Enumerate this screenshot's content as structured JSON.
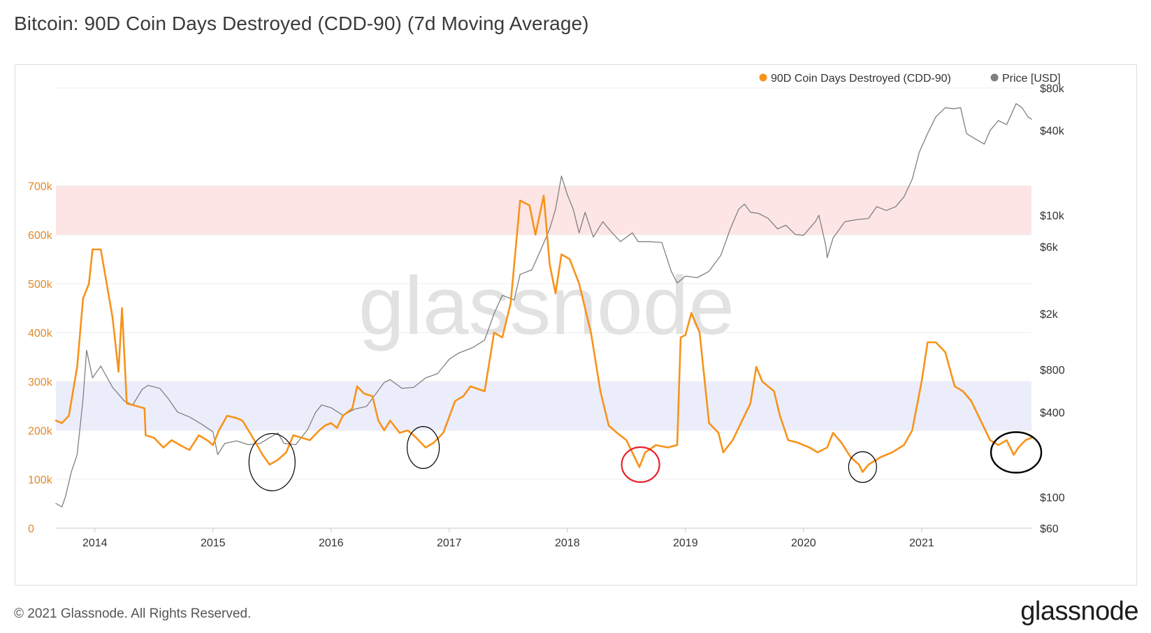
{
  "title": "Bitcoin: 90D Coin Days Destroyed (CDD-90) (7d Moving Average)",
  "footer": {
    "copyright": "© 2021 Glassnode. All Rights Reserved.",
    "logo": "glassnode"
  },
  "watermark": "glassnode",
  "colors": {
    "cdd": "#f7931a",
    "price": "#808080",
    "upper_band": "#fde5e5",
    "lower_band": "#ecedfb",
    "left_axis": "#e08a2a",
    "right_axis": "#333333",
    "circle_black": "#000000",
    "circle_red": "#e8202a"
  },
  "chart_data": {
    "type": "line",
    "title": "Bitcoin: 90D Coin Days Destroyed (CDD-90) (7d Moving Average)",
    "legend_position": "top-right",
    "grid": true,
    "x_range": [
      2013.67,
      2021.93
    ],
    "x_ticks": [
      "2014",
      "2015",
      "2016",
      "2017",
      "2018",
      "2019",
      "2020",
      "2021"
    ],
    "y_left": {
      "range": [
        0,
        900000
      ],
      "ticks": [
        0,
        100000,
        200000,
        300000,
        400000,
        500000,
        600000,
        700000
      ],
      "tick_labels": [
        "0",
        "100k",
        "200k",
        "300k",
        "400k",
        "500k",
        "600k",
        "700k"
      ]
    },
    "y_right": {
      "scale": "log",
      "range": [
        60,
        80000
      ],
      "ticks": [
        60,
        100,
        400,
        800,
        2000,
        6000,
        10000,
        40000,
        80000
      ],
      "tick_labels": [
        "$60",
        "$100",
        "$400",
        "$800",
        "$2k",
        "$6k",
        "$10k",
        "$40k",
        "$80k"
      ]
    },
    "bands": [
      {
        "axis": "left",
        "from": 600000,
        "to": 700000,
        "color": "#fde5e5"
      },
      {
        "axis": "left",
        "from": 200000,
        "to": 300000,
        "color": "#ecedfb"
      }
    ],
    "series": [
      {
        "name": "90D Coin Days Destroyed (CDD-90)",
        "axis": "left",
        "color": "#f7931a",
        "points": [
          [
            2013.67,
            220000
          ],
          [
            2013.72,
            215000
          ],
          [
            2013.78,
            230000
          ],
          [
            2013.85,
            330000
          ],
          [
            2013.9,
            470000
          ],
          [
            2013.95,
            500000
          ],
          [
            2013.98,
            570000
          ],
          [
            2014.05,
            570000
          ],
          [
            2014.1,
            500000
          ],
          [
            2014.15,
            430000
          ],
          [
            2014.2,
            320000
          ],
          [
            2014.23,
            450000
          ],
          [
            2014.27,
            255000
          ],
          [
            2014.35,
            250000
          ],
          [
            2014.42,
            245000
          ],
          [
            2014.43,
            190000
          ],
          [
            2014.5,
            185000
          ],
          [
            2014.58,
            165000
          ],
          [
            2014.65,
            180000
          ],
          [
            2014.72,
            170000
          ],
          [
            2014.8,
            160000
          ],
          [
            2014.88,
            190000
          ],
          [
            2014.95,
            180000
          ],
          [
            2015.0,
            170000
          ],
          [
            2015.05,
            200000
          ],
          [
            2015.12,
            230000
          ],
          [
            2015.2,
            225000
          ],
          [
            2015.25,
            220000
          ],
          [
            2015.35,
            180000
          ],
          [
            2015.42,
            150000
          ],
          [
            2015.48,
            130000
          ],
          [
            2015.55,
            140000
          ],
          [
            2015.62,
            155000
          ],
          [
            2015.68,
            190000
          ],
          [
            2015.75,
            185000
          ],
          [
            2015.82,
            180000
          ],
          [
            2015.9,
            200000
          ],
          [
            2015.95,
            210000
          ],
          [
            2016.0,
            215000
          ],
          [
            2016.05,
            205000
          ],
          [
            2016.1,
            230000
          ],
          [
            2016.18,
            245000
          ],
          [
            2016.22,
            290000
          ],
          [
            2016.28,
            275000
          ],
          [
            2016.35,
            270000
          ],
          [
            2016.4,
            220000
          ],
          [
            2016.45,
            200000
          ],
          [
            2016.5,
            220000
          ],
          [
            2016.58,
            195000
          ],
          [
            2016.65,
            200000
          ],
          [
            2016.72,
            185000
          ],
          [
            2016.8,
            165000
          ],
          [
            2016.87,
            175000
          ],
          [
            2016.95,
            195000
          ],
          [
            2017.05,
            260000
          ],
          [
            2017.12,
            270000
          ],
          [
            2017.18,
            290000
          ],
          [
            2017.3,
            280000
          ],
          [
            2017.38,
            400000
          ],
          [
            2017.45,
            390000
          ],
          [
            2017.52,
            460000
          ],
          [
            2017.6,
            670000
          ],
          [
            2017.68,
            660000
          ],
          [
            2017.73,
            600000
          ],
          [
            2017.8,
            680000
          ],
          [
            2017.85,
            540000
          ],
          [
            2017.9,
            480000
          ],
          [
            2017.95,
            560000
          ],
          [
            2018.02,
            550000
          ],
          [
            2018.1,
            500000
          ],
          [
            2018.2,
            400000
          ],
          [
            2018.28,
            280000
          ],
          [
            2018.35,
            210000
          ],
          [
            2018.42,
            195000
          ],
          [
            2018.5,
            180000
          ],
          [
            2018.56,
            150000
          ],
          [
            2018.61,
            125000
          ],
          [
            2018.66,
            155000
          ],
          [
            2018.75,
            170000
          ],
          [
            2018.85,
            165000
          ],
          [
            2018.93,
            170000
          ],
          [
            2018.96,
            390000
          ],
          [
            2019.0,
            395000
          ],
          [
            2019.05,
            440000
          ],
          [
            2019.12,
            400000
          ],
          [
            2019.2,
            215000
          ],
          [
            2019.28,
            195000
          ],
          [
            2019.32,
            155000
          ],
          [
            2019.4,
            180000
          ],
          [
            2019.5,
            230000
          ],
          [
            2019.55,
            255000
          ],
          [
            2019.6,
            330000
          ],
          [
            2019.65,
            300000
          ],
          [
            2019.75,
            280000
          ],
          [
            2019.8,
            230000
          ],
          [
            2019.87,
            180000
          ],
          [
            2019.95,
            175000
          ],
          [
            2020.05,
            165000
          ],
          [
            2020.12,
            155000
          ],
          [
            2020.2,
            165000
          ],
          [
            2020.25,
            195000
          ],
          [
            2020.32,
            175000
          ],
          [
            2020.4,
            145000
          ],
          [
            2020.47,
            130000
          ],
          [
            2020.5,
            115000
          ],
          [
            2020.55,
            130000
          ],
          [
            2020.65,
            145000
          ],
          [
            2020.75,
            155000
          ],
          [
            2020.85,
            170000
          ],
          [
            2020.92,
            200000
          ],
          [
            2021.0,
            300000
          ],
          [
            2021.05,
            380000
          ],
          [
            2021.12,
            380000
          ],
          [
            2021.2,
            360000
          ],
          [
            2021.28,
            290000
          ],
          [
            2021.35,
            280000
          ],
          [
            2021.42,
            260000
          ],
          [
            2021.5,
            220000
          ],
          [
            2021.58,
            180000
          ],
          [
            2021.65,
            170000
          ],
          [
            2021.72,
            180000
          ],
          [
            2021.78,
            150000
          ],
          [
            2021.82,
            165000
          ],
          [
            2021.88,
            180000
          ],
          [
            2021.93,
            185000
          ]
        ]
      },
      {
        "name": "Price [USD]",
        "axis": "right",
        "color": "#808080",
        "points": [
          [
            2013.67,
            90
          ],
          [
            2013.72,
            85
          ],
          [
            2013.75,
            100
          ],
          [
            2013.8,
            150
          ],
          [
            2013.85,
            200
          ],
          [
            2013.9,
            500
          ],
          [
            2013.93,
            1100
          ],
          [
            2013.98,
            700
          ],
          [
            2014.05,
            850
          ],
          [
            2014.15,
            600
          ],
          [
            2014.25,
            480
          ],
          [
            2014.32,
            450
          ],
          [
            2014.4,
            580
          ],
          [
            2014.45,
            620
          ],
          [
            2014.55,
            590
          ],
          [
            2014.62,
            500
          ],
          [
            2014.7,
            400
          ],
          [
            2014.8,
            370
          ],
          [
            2014.9,
            330
          ],
          [
            2015.0,
            290
          ],
          [
            2015.04,
            200
          ],
          [
            2015.1,
            240
          ],
          [
            2015.2,
            250
          ],
          [
            2015.3,
            235
          ],
          [
            2015.4,
            240
          ],
          [
            2015.5,
            270
          ],
          [
            2015.55,
            285
          ],
          [
            2015.6,
            240
          ],
          [
            2015.7,
            235
          ],
          [
            2015.8,
            300
          ],
          [
            2015.87,
            400
          ],
          [
            2015.92,
            450
          ],
          [
            2016.0,
            430
          ],
          [
            2016.1,
            380
          ],
          [
            2016.2,
            420
          ],
          [
            2016.3,
            440
          ],
          [
            2016.45,
            650
          ],
          [
            2016.5,
            680
          ],
          [
            2016.6,
            590
          ],
          [
            2016.7,
            600
          ],
          [
            2016.8,
            700
          ],
          [
            2016.9,
            750
          ],
          [
            2017.0,
            950
          ],
          [
            2017.08,
            1050
          ],
          [
            2017.2,
            1150
          ],
          [
            2017.3,
            1300
          ],
          [
            2017.38,
            2000
          ],
          [
            2017.45,
            2700
          ],
          [
            2017.55,
            2500
          ],
          [
            2017.6,
            3800
          ],
          [
            2017.7,
            4100
          ],
          [
            2017.78,
            5800
          ],
          [
            2017.85,
            8000
          ],
          [
            2017.9,
            11000
          ],
          [
            2017.95,
            19000
          ],
          [
            2018.0,
            14000
          ],
          [
            2018.05,
            11000
          ],
          [
            2018.1,
            7500
          ],
          [
            2018.15,
            10500
          ],
          [
            2018.22,
            7000
          ],
          [
            2018.3,
            9000
          ],
          [
            2018.38,
            7500
          ],
          [
            2018.45,
            6500
          ],
          [
            2018.55,
            7500
          ],
          [
            2018.6,
            6500
          ],
          [
            2018.7,
            6500
          ],
          [
            2018.8,
            6400
          ],
          [
            2018.88,
            4000
          ],
          [
            2018.93,
            3300
          ],
          [
            2019.0,
            3700
          ],
          [
            2019.1,
            3600
          ],
          [
            2019.2,
            4000
          ],
          [
            2019.3,
            5200
          ],
          [
            2019.38,
            8000
          ],
          [
            2019.45,
            11000
          ],
          [
            2019.5,
            12000
          ],
          [
            2019.55,
            10500
          ],
          [
            2019.62,
            10300
          ],
          [
            2019.7,
            9500
          ],
          [
            2019.78,
            8000
          ],
          [
            2019.85,
            8500
          ],
          [
            2019.93,
            7300
          ],
          [
            2020.0,
            7200
          ],
          [
            2020.1,
            9000
          ],
          [
            2020.13,
            10000
          ],
          [
            2020.19,
            6000
          ],
          [
            2020.2,
            5000
          ],
          [
            2020.25,
            6900
          ],
          [
            2020.35,
            9000
          ],
          [
            2020.45,
            9300
          ],
          [
            2020.55,
            9500
          ],
          [
            2020.62,
            11500
          ],
          [
            2020.7,
            10800
          ],
          [
            2020.78,
            11500
          ],
          [
            2020.85,
            13500
          ],
          [
            2020.92,
            18000
          ],
          [
            2020.98,
            28000
          ],
          [
            2021.05,
            38000
          ],
          [
            2021.12,
            50000
          ],
          [
            2021.2,
            58000
          ],
          [
            2021.27,
            57000
          ],
          [
            2021.33,
            58000
          ],
          [
            2021.38,
            38000
          ],
          [
            2021.45,
            35000
          ],
          [
            2021.53,
            32000
          ],
          [
            2021.58,
            40000
          ],
          [
            2021.65,
            47000
          ],
          [
            2021.72,
            44000
          ],
          [
            2021.8,
            62000
          ],
          [
            2021.85,
            58000
          ],
          [
            2021.9,
            50000
          ],
          [
            2021.93,
            48000
          ]
        ]
      }
    ],
    "annotations": [
      {
        "type": "circle",
        "color": "black",
        "center": [
          2015.5,
          135000
        ]
      },
      {
        "type": "circle",
        "color": "black",
        "center": [
          2016.78,
          165000
        ]
      },
      {
        "type": "circle",
        "color": "red",
        "center": [
          2018.62,
          130000
        ]
      },
      {
        "type": "circle",
        "color": "black",
        "center": [
          2020.5,
          125000
        ]
      },
      {
        "type": "circle",
        "color": "black",
        "center": [
          2021.8,
          155000
        ]
      }
    ]
  }
}
